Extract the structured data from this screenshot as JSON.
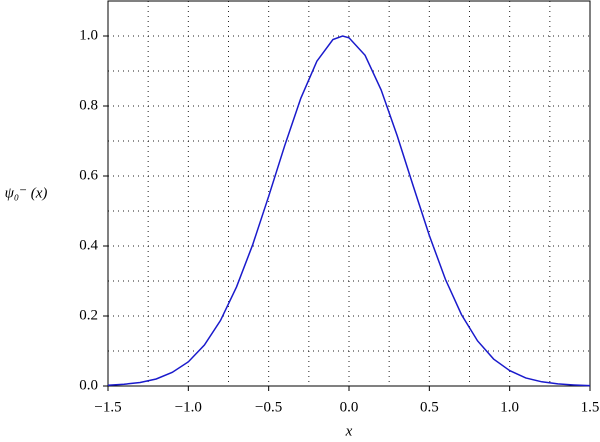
{
  "chart_data": {
    "type": "line",
    "xlabel": "x",
    "ylabel": "ψ₀⁻ (x)",
    "x": [
      -1.5,
      -1.4,
      -1.3,
      -1.2,
      -1.1,
      -1.0,
      -0.9,
      -0.8,
      -0.7,
      -0.6,
      -0.5,
      -0.4,
      -0.3,
      -0.2,
      -0.1,
      -0.04,
      0.0,
      0.1,
      0.2,
      0.3,
      0.4,
      0.5,
      0.6,
      0.7,
      0.8,
      0.9,
      1.0,
      1.1,
      1.2,
      1.3,
      1.4,
      1.5
    ],
    "series": [
      {
        "color": "#1a1acc",
        "values": [
          0.002,
          0.005,
          0.01,
          0.02,
          0.039,
          0.069,
          0.117,
          0.187,
          0.283,
          0.403,
          0.542,
          0.687,
          0.822,
          0.928,
          0.99,
          1.0,
          0.995,
          0.945,
          0.846,
          0.715,
          0.571,
          0.43,
          0.305,
          0.204,
          0.129,
          0.077,
          0.044,
          0.023,
          0.012,
          0.006,
          0.003,
          0.001
        ]
      }
    ],
    "xlim": [
      -1.5,
      1.5
    ],
    "ylim": [
      0,
      1.1
    ],
    "xticks": [
      {
        "value": -1.5,
        "label": "−1.5"
      },
      {
        "value": -1.0,
        "label": "−1.0"
      },
      {
        "value": -0.5,
        "label": "−0.5"
      },
      {
        "value": 0,
        "label": "0.0"
      },
      {
        "value": 0.5,
        "label": "0.5"
      },
      {
        "value": 1,
        "label": "1.0"
      },
      {
        "value": 1.5,
        "label": "1.5"
      }
    ],
    "yticks": [
      {
        "value": 0,
        "label": "0.0"
      },
      {
        "value": 0.2,
        "label": "0.2"
      },
      {
        "value": 0.4,
        "label": "0.4"
      },
      {
        "value": 0.6,
        "label": "0.6"
      },
      {
        "value": 0.8,
        "label": "0.8"
      },
      {
        "value": 1,
        "label": "1.0"
      }
    ],
    "minor_xticks": [
      -1.25,
      -0.75,
      -0.25,
      0.25,
      0.75,
      1.25
    ],
    "minor_yticks": [
      0.1,
      0.3,
      0.5,
      0.7,
      0.9
    ],
    "grid": true
  }
}
